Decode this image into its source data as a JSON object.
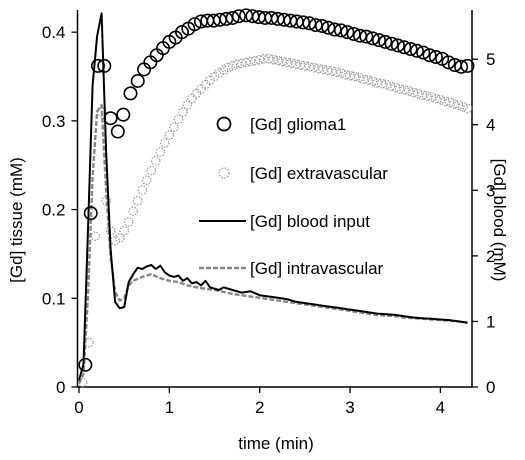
{
  "chart_data": {
    "type": "line",
    "title": "",
    "xlabel": "time (min)",
    "ylabel_left": "[Gd] tissue (mM)",
    "ylabel_right": "[Gd] blood (mM)",
    "xlim": [
      0,
      4.35
    ],
    "ylim_left": [
      0,
      0.425
    ],
    "ylim_right": [
      0,
      5.75
    ],
    "x_ticks": [
      "0",
      "1",
      "2",
      "3",
      "4"
    ],
    "y_ticks_left": [
      "0",
      "0.1",
      "0.2",
      "0.3",
      "0.4"
    ],
    "y_ticks_right": [
      "0",
      "1",
      "2",
      "3",
      "4",
      "5"
    ],
    "grid": false,
    "legend_position": "center-right",
    "series": [
      {
        "name": "[Gd] glioma1",
        "axis": "left",
        "style": "open-circles",
        "color": "#000000",
        "x": [
          0.07,
          0.13,
          0.21,
          0.28,
          0.35,
          0.43,
          0.49,
          0.57,
          0.65,
          0.72,
          0.79,
          0.86,
          0.93,
          1.0,
          1.07,
          1.14,
          1.21,
          1.28,
          1.35,
          1.42,
          1.49,
          1.56,
          1.63,
          1.7,
          1.77,
          1.85,
          1.92,
          1.99,
          2.06,
          2.13,
          2.2,
          2.27,
          2.34,
          2.41,
          2.48,
          2.55,
          2.62,
          2.69,
          2.76,
          2.83,
          2.9,
          2.97,
          3.04,
          3.11,
          3.18,
          3.25,
          3.32,
          3.39,
          3.46,
          3.53,
          3.6,
          3.67,
          3.74,
          3.81,
          3.88,
          3.95,
          4.02,
          4.09,
          4.16,
          4.23,
          4.3
        ],
        "values": [
          0.025,
          0.196,
          0.362,
          0.362,
          0.303,
          0.288,
          0.307,
          0.331,
          0.345,
          0.358,
          0.366,
          0.374,
          0.382,
          0.389,
          0.394,
          0.4,
          0.404,
          0.409,
          0.412,
          0.413,
          0.413,
          0.414,
          0.415,
          0.416,
          0.418,
          0.419,
          0.418,
          0.417,
          0.416,
          0.416,
          0.415,
          0.414,
          0.413,
          0.412,
          0.411,
          0.41,
          0.408,
          0.407,
          0.405,
          0.403,
          0.402,
          0.4,
          0.398,
          0.396,
          0.395,
          0.393,
          0.391,
          0.389,
          0.387,
          0.385,
          0.383,
          0.381,
          0.379,
          0.377,
          0.374,
          0.372,
          0.37,
          0.366,
          0.363,
          0.361,
          0.362
        ]
      },
      {
        "name": "[Gd] extravascular",
        "axis": "left",
        "style": "dotted-circles",
        "color": "#9a9a9a",
        "x": [
          0.04,
          0.11,
          0.18,
          0.25,
          0.3,
          0.35,
          0.4,
          0.45,
          0.5,
          0.55,
          0.6,
          0.65,
          0.7,
          0.75,
          0.8,
          0.85,
          0.9,
          0.95,
          1.0,
          1.05,
          1.1,
          1.15,
          1.2,
          1.25,
          1.3,
          1.35,
          1.4,
          1.45,
          1.5,
          1.55,
          1.6,
          1.65,
          1.7,
          1.75,
          1.8,
          1.85,
          1.9,
          1.95,
          2.0,
          2.05,
          2.1,
          2.15,
          2.2,
          2.25,
          2.3,
          2.35,
          2.4,
          2.45,
          2.5,
          2.55,
          2.6,
          2.65,
          2.7,
          2.75,
          2.8,
          2.85,
          2.9,
          2.95,
          3.0,
          3.05,
          3.1,
          3.15,
          3.2,
          3.25,
          3.3,
          3.35,
          3.4,
          3.45,
          3.5,
          3.55,
          3.6,
          3.65,
          3.7,
          3.75,
          3.8,
          3.85,
          3.9,
          3.95,
          4.0,
          4.05,
          4.1,
          4.15,
          4.2,
          4.25,
          4.3
        ],
        "values": [
          0.005,
          0.05,
          0.17,
          0.31,
          0.21,
          0.176,
          0.165,
          0.168,
          0.176,
          0.186,
          0.198,
          0.21,
          0.222,
          0.233,
          0.244,
          0.255,
          0.265,
          0.275,
          0.284,
          0.293,
          0.302,
          0.31,
          0.318,
          0.325,
          0.331,
          0.336,
          0.341,
          0.346,
          0.35,
          0.354,
          0.357,
          0.36,
          0.362,
          0.364,
          0.365,
          0.366,
          0.367,
          0.368,
          0.369,
          0.37,
          0.37,
          0.369,
          0.368,
          0.367,
          0.366,
          0.365,
          0.364,
          0.363,
          0.362,
          0.361,
          0.36,
          0.359,
          0.358,
          0.357,
          0.356,
          0.355,
          0.354,
          0.352,
          0.351,
          0.35,
          0.349,
          0.347,
          0.346,
          0.345,
          0.343,
          0.342,
          0.341,
          0.339,
          0.338,
          0.336,
          0.335,
          0.334,
          0.332,
          0.331,
          0.329,
          0.328,
          0.327,
          0.325,
          0.324,
          0.322,
          0.321,
          0.319,
          0.318,
          0.316,
          0.314
        ]
      },
      {
        "name": "[Gd] blood input",
        "axis": "right",
        "style": "solid-line",
        "color": "#000000",
        "x": [
          0.0,
          0.05,
          0.1,
          0.15,
          0.2,
          0.25,
          0.3,
          0.35,
          0.4,
          0.45,
          0.5,
          0.55,
          0.6,
          0.65,
          0.7,
          0.75,
          0.8,
          0.85,
          0.9,
          0.95,
          1.0,
          1.05,
          1.1,
          1.15,
          1.2,
          1.25,
          1.3,
          1.35,
          1.4,
          1.45,
          1.5,
          1.55,
          1.6,
          1.7,
          1.8,
          1.9,
          2.0,
          2.1,
          2.2,
          2.3,
          2.4,
          2.5,
          2.6,
          2.7,
          2.8,
          2.9,
          3.0,
          3.1,
          3.2,
          3.3,
          3.4,
          3.5,
          3.6,
          3.7,
          3.8,
          3.9,
          4.0,
          4.1,
          4.2,
          4.3
        ],
        "values": [
          0.1,
          0.35,
          2.4,
          4.6,
          5.35,
          5.7,
          3.6,
          2.1,
          1.3,
          1.2,
          1.22,
          1.6,
          1.72,
          1.82,
          1.8,
          1.84,
          1.86,
          1.8,
          1.85,
          1.75,
          1.7,
          1.68,
          1.7,
          1.62,
          1.66,
          1.58,
          1.6,
          1.55,
          1.62,
          1.52,
          1.5,
          1.48,
          1.52,
          1.48,
          1.44,
          1.46,
          1.4,
          1.38,
          1.36,
          1.34,
          1.3,
          1.28,
          1.26,
          1.24,
          1.22,
          1.2,
          1.18,
          1.16,
          1.14,
          1.12,
          1.11,
          1.1,
          1.08,
          1.06,
          1.05,
          1.04,
          1.03,
          1.02,
          1.0,
          0.98
        ]
      },
      {
        "name": "[Gd] intravascular",
        "axis": "right",
        "style": "dashed-line",
        "color": "#888888",
        "x": [
          0.0,
          0.05,
          0.1,
          0.15,
          0.2,
          0.25,
          0.3,
          0.35,
          0.4,
          0.45,
          0.5,
          0.55,
          0.6,
          0.7,
          0.8,
          0.9,
          1.0,
          1.1,
          1.2,
          1.3,
          1.4,
          1.5,
          1.6,
          1.7,
          1.8,
          1.9,
          2.0,
          2.1,
          2.2,
          2.3,
          2.4,
          2.5,
          2.6,
          2.7,
          2.8,
          2.9,
          3.0,
          3.1,
          3.2,
          3.3,
          3.4,
          3.5,
          3.6,
          3.7,
          3.8,
          3.9,
          4.0,
          4.1,
          4.2,
          4.3
        ],
        "values": [
          0.05,
          0.2,
          1.4,
          3.2,
          4.2,
          4.3,
          3.0,
          2.0,
          1.45,
          1.32,
          1.35,
          1.55,
          1.62,
          1.68,
          1.72,
          1.66,
          1.62,
          1.6,
          1.55,
          1.52,
          1.5,
          1.48,
          1.45,
          1.42,
          1.4,
          1.38,
          1.36,
          1.34,
          1.32,
          1.3,
          1.28,
          1.26,
          1.24,
          1.22,
          1.2,
          1.18,
          1.16,
          1.14,
          1.12,
          1.1,
          1.09,
          1.08,
          1.06,
          1.05,
          1.04,
          1.03,
          1.02,
          1.01,
          1.0,
          0.98
        ]
      }
    ]
  }
}
